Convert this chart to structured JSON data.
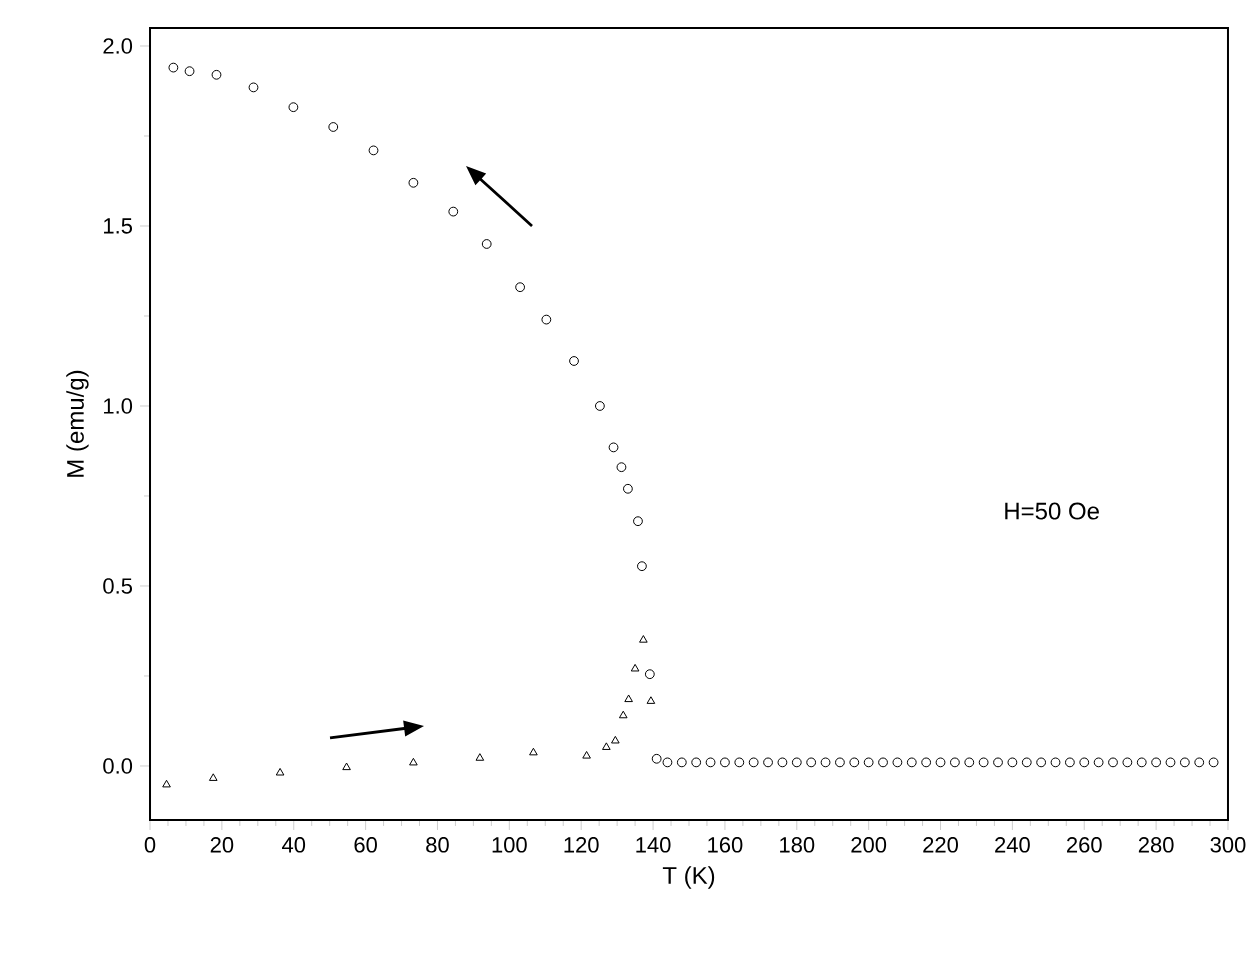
{
  "chart_data": {
    "type": "scatter",
    "xlabel": "T (K)",
    "ylabel": "M (emu/g)",
    "xlim": [
      0,
      300
    ],
    "ylim": [
      -0.15,
      2.05
    ],
    "xticks": [
      0,
      20,
      40,
      60,
      80,
      100,
      120,
      140,
      160,
      180,
      200,
      220,
      240,
      260,
      280,
      300
    ],
    "yticks": [
      {
        "value": 0,
        "label": "0.0"
      },
      0.5,
      {
        "value": 1,
        "label": "1.0"
      },
      1.5,
      {
        "value": 2,
        "label": "2.0"
      }
    ],
    "annotations": [
      "H=50 Oe"
    ],
    "series": [
      {
        "color": "#000000",
        "marker": "circle",
        "x": [
          6.5,
          11,
          18.5,
          28.8,
          39.9,
          51,
          62.2,
          73.3,
          84.4,
          93.7,
          103,
          110.3,
          118,
          125.2,
          129,
          131.2,
          133,
          135.8,
          136.9,
          139.1,
          141,
          144,
          148,
          152,
          156,
          160,
          164,
          168,
          172,
          176,
          180,
          184,
          188,
          192,
          196,
          200,
          204,
          208,
          212,
          216,
          220,
          224,
          228,
          232,
          236,
          240,
          244,
          248,
          252,
          256,
          260,
          264,
          268,
          272,
          276,
          280,
          284,
          288,
          292,
          296
        ],
        "values": [
          1.94,
          1.93,
          1.92,
          1.885,
          1.83,
          1.775,
          1.71,
          1.62,
          1.54,
          1.45,
          1.33,
          1.24,
          1.125,
          1.0,
          0.885,
          0.83,
          0.77,
          0.68,
          0.555,
          0.255,
          0.02,
          0.01,
          0.01,
          0.01,
          0.01,
          0.01,
          0.01,
          0.01,
          0.01,
          0.01,
          0.01,
          0.01,
          0.01,
          0.01,
          0.01,
          0.01,
          0.01,
          0.01,
          0.01,
          0.01,
          0.01,
          0.01,
          0.01,
          0.01,
          0.01,
          0.01,
          0.01,
          0.01,
          0.01,
          0.01,
          0.01,
          0.01,
          0.01,
          0.01,
          0.01,
          0.01,
          0.01,
          0.01,
          0.01,
          0.01
        ]
      },
      {
        "color": "#000000",
        "marker": "triangle",
        "x": [
          4.6,
          17.6,
          36.2,
          54.7,
          73.3,
          91.8,
          106.7,
          121.5,
          127,
          129.5,
          131.7,
          133.2,
          135,
          137.3,
          139.4
        ],
        "values": [
          -0.052,
          -0.034,
          -0.019,
          -0.004,
          0.009,
          0.022,
          0.037,
          0.028,
          0.052,
          0.07,
          0.14,
          0.185,
          0.27,
          0.35,
          0.18
        ]
      }
    ]
  }
}
